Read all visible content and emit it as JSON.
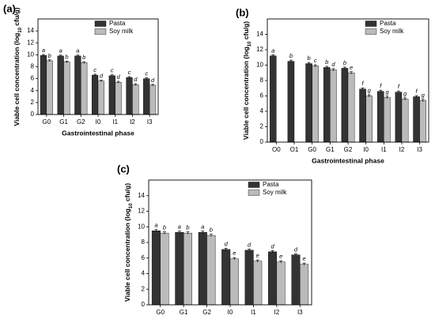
{
  "chart_data": [
    {
      "type": "bar",
      "panel": "(a)",
      "xlabel": "Gastrointestinal phase",
      "ylabel": [
        "Viable cell concentration (log",
        "10",
        " cfu/g)"
      ],
      "categories": [
        "G0",
        "G1",
        "G2",
        "I0",
        "I1",
        "I2",
        "I3"
      ],
      "series": [
        {
          "name": "Pasta",
          "color": "#333333",
          "values": [
            9.9,
            9.8,
            9.8,
            6.6,
            6.5,
            6.2,
            6.0
          ],
          "errors": [
            0.15,
            0.15,
            0.15,
            0.15,
            0.15,
            0.15,
            0.15
          ],
          "letters": [
            "a",
            "a",
            "a",
            "c",
            "c",
            "c",
            "c"
          ]
        },
        {
          "name": "Soy milk",
          "color": "#bbbbbb",
          "values": [
            9.0,
            8.8,
            8.7,
            5.6,
            5.4,
            5.0,
            4.9
          ],
          "errors": [
            0.15,
            0.15,
            0.15,
            0.15,
            0.15,
            0.15,
            0.15
          ],
          "letters": [
            "b",
            "b",
            "b",
            "d",
            "d",
            "d",
            "d"
          ]
        }
      ],
      "ylim": [
        0,
        16
      ],
      "yticks": [
        0,
        2,
        4,
        6,
        8,
        10,
        12,
        14
      ]
    },
    {
      "type": "bar",
      "panel": "(b)",
      "xlabel": "Gastrointestinal phase",
      "ylabel": [
        "Viable cell concentration (log",
        "10",
        " cfu/g)"
      ],
      "categories": [
        "O0",
        "O1",
        "G0",
        "G1",
        "G2",
        "I0",
        "I1",
        "I2",
        "I3"
      ],
      "series": [
        {
          "name": "Pasta",
          "color": "#333333",
          "values": [
            11.2,
            10.5,
            10.2,
            9.7,
            9.6,
            6.9,
            6.6,
            6.5,
            5.9
          ],
          "errors": [
            0.15,
            0.15,
            0.15,
            0.15,
            0.15,
            0.15,
            0.15,
            0.15,
            0.15
          ],
          "letters": [
            "a",
            "b",
            "b",
            "b",
            "b",
            "f",
            "f",
            "f",
            "f"
          ]
        },
        {
          "name": "Soy milk",
          "color": "#bbbbbb",
          "values": [
            null,
            null,
            9.9,
            9.4,
            9.0,
            6.0,
            5.8,
            5.6,
            5.4
          ],
          "errors": [
            null,
            null,
            0.15,
            0.15,
            0.15,
            0.15,
            0.15,
            0.15,
            0.15
          ],
          "letters": [
            null,
            null,
            "c",
            "d",
            "e",
            "g",
            "g",
            "g",
            "g"
          ]
        }
      ],
      "ylim": [
        0,
        16
      ],
      "yticks": [
        0,
        2,
        4,
        6,
        8,
        10,
        12,
        14
      ]
    },
    {
      "type": "bar",
      "panel": "(c)",
      "xlabel": "Gastrointestinal phase",
      "ylabel": [
        "Viable cell concentration (log",
        "10",
        " cfu/g)"
      ],
      "categories": [
        "G0",
        "G1",
        "G2",
        "I0",
        "I1",
        "I2",
        "I3"
      ],
      "series": [
        {
          "name": "Pasta",
          "color": "#333333",
          "values": [
            9.5,
            9.3,
            9.3,
            7.1,
            7.0,
            6.8,
            6.4
          ],
          "errors": [
            0.15,
            0.15,
            0.15,
            0.15,
            0.15,
            0.15,
            0.15
          ],
          "letters": [
            "a",
            "a",
            "a",
            "d",
            "d",
            "d",
            "d"
          ]
        },
        {
          "name": "Soy milk",
          "color": "#bbbbbb",
          "values": [
            9.2,
            9.2,
            8.9,
            5.9,
            5.6,
            5.5,
            5.2
          ],
          "errors": [
            0.15,
            0.15,
            0.15,
            0.15,
            0.15,
            0.15,
            0.15
          ],
          "letters": [
            "b",
            "b",
            "b",
            "e",
            "e",
            "e",
            "e"
          ]
        }
      ],
      "ylim": [
        0,
        16
      ],
      "yticks": [
        0,
        2,
        4,
        6,
        8,
        10,
        12,
        14
      ]
    }
  ]
}
